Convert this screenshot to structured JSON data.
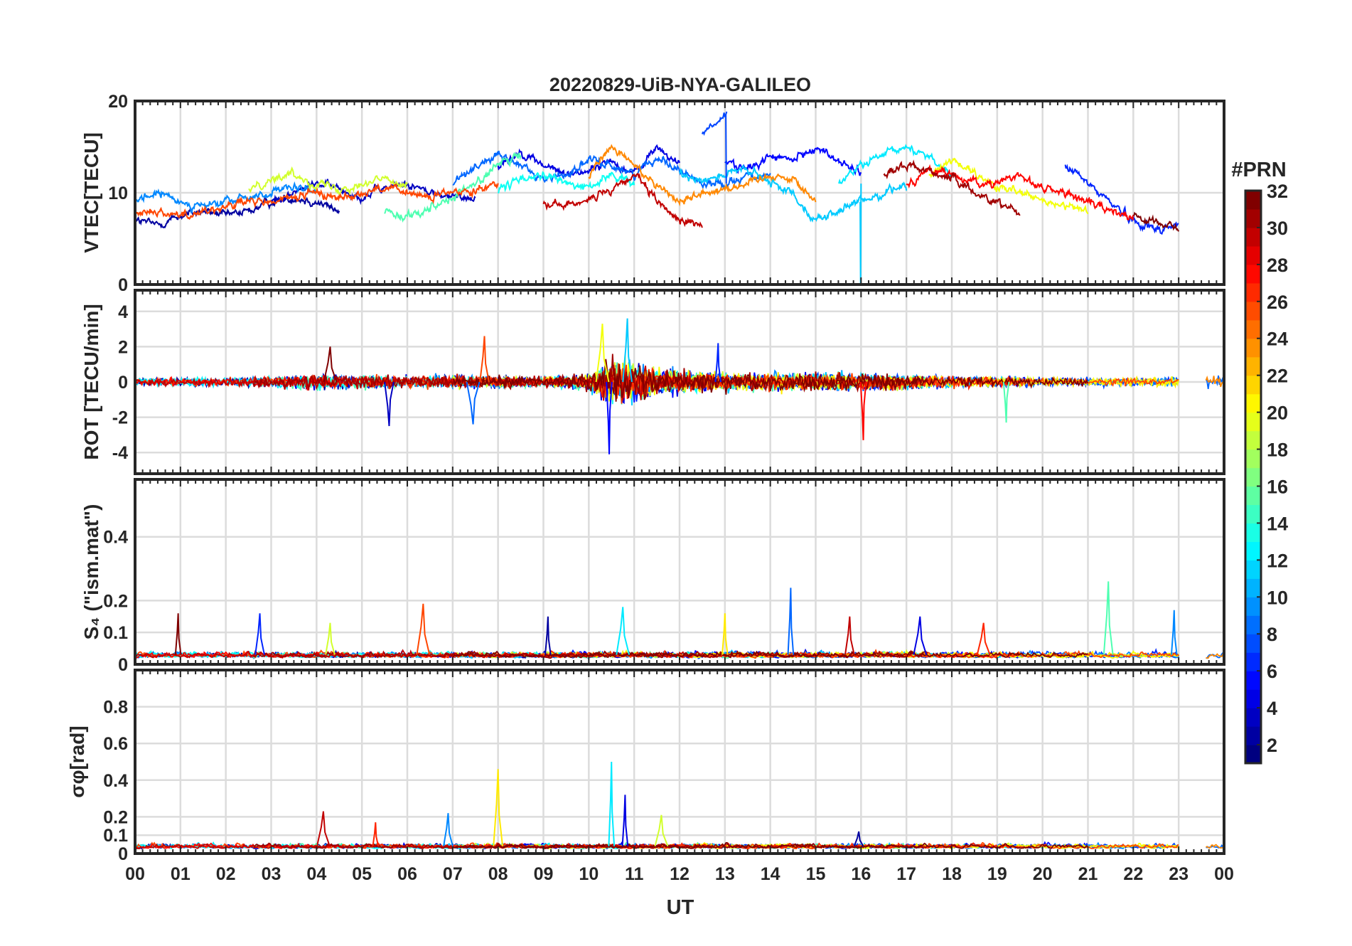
{
  "chart_data": {
    "title": "20220829-UiB-NYA-GALILEO",
    "xlabel": "UT",
    "x_ticks": [
      "00",
      "01",
      "02",
      "03",
      "04",
      "05",
      "06",
      "07",
      "08",
      "09",
      "10",
      "11",
      "12",
      "13",
      "14",
      "15",
      "16",
      "17",
      "18",
      "19",
      "20",
      "21",
      "22",
      "23",
      "00"
    ],
    "xlim": [
      0,
      24
    ],
    "grid": true,
    "colorbar": {
      "label": "#PRN",
      "range": [
        1,
        32
      ],
      "ticks": [
        "2",
        "4",
        "6",
        "8",
        "10",
        "12",
        "14",
        "16",
        "18",
        "20",
        "22",
        "24",
        "26",
        "28",
        "30",
        "32"
      ],
      "colormap": "jet"
    },
    "panels": [
      {
        "type": "line",
        "ylabel": "VTEC[TECU]",
        "ylim": [
          0,
          20
        ],
        "yticks": [
          "0",
          "10",
          "20"
        ],
        "series": [
          {
            "prn": 2,
            "x": [
              0,
              0.5,
              1,
              1.5,
              2,
              2.5,
              3,
              3.5,
              4,
              4.5
            ],
            "y": [
              7,
              6.5,
              7.5,
              8,
              7.5,
              8,
              9,
              9.5,
              9,
              8
            ]
          },
          {
            "prn": 3,
            "x": [
              3,
              3.5,
              4,
              4.5,
              5,
              5.5,
              6,
              6.5,
              7,
              7.5
            ],
            "y": [
              9,
              10,
              11,
              10.5,
              9.5,
              10.5,
              11,
              10,
              9.5,
              9.5
            ]
          },
          {
            "prn": 4,
            "x": [
              8,
              8.5,
              9,
              9.5,
              10,
              10.5,
              11,
              11.5,
              12
            ],
            "y": [
              13,
              14.5,
              13,
              12,
              12.5,
              13.5,
              12,
              15,
              13
            ]
          },
          {
            "prn": 5,
            "x": [
              13,
              13.5,
              14,
              14.5,
              15,
              15.5,
              16
            ],
            "y": [
              13.5,
              12.5,
              14,
              13.5,
              15,
              13.5,
              12
            ]
          },
          {
            "prn": 6,
            "x": [
              20.5,
              21,
              21.5,
              22,
              22.5,
              23
            ],
            "y": [
              13,
              11,
              9,
              7,
              6,
              6.5
            ]
          },
          {
            "prn": 7,
            "x": [
              12.5,
              12.8,
              13.05
            ],
            "y": [
              16.5,
              17.5,
              18.5
            ]
          },
          {
            "prn": 8,
            "x": [
              7,
              7.5,
              8,
              8.5,
              9,
              9.5,
              10,
              10.5,
              11,
              11.5,
              12,
              12.5,
              13,
              13.5,
              14
            ],
            "y": [
              11,
              13,
              14,
              13,
              11.5,
              12,
              13.5,
              13,
              12,
              14,
              12.5,
              11,
              11,
              12,
              11.5
            ]
          },
          {
            "prn": 9,
            "x": [
              0,
              0.5,
              1,
              1.5,
              2,
              2.5,
              3,
              3.5,
              4
            ],
            "y": [
              9,
              10,
              9,
              8.5,
              9,
              9.5,
              10,
              10.5,
              10
            ]
          },
          {
            "prn": 11,
            "x": [
              12,
              12.5,
              13,
              13.5,
              14,
              14.5,
              15,
              15.5,
              16,
              16.5,
              17
            ],
            "y": [
              12,
              11.5,
              12,
              12.5,
              11,
              10,
              7,
              8,
              9,
              10,
              11
            ]
          },
          {
            "prn": 12,
            "x": [
              15.5,
              16,
              16.5,
              17,
              17.5,
              18
            ],
            "y": [
              11,
              13,
              14,
              15,
              14,
              12
            ]
          },
          {
            "prn": 13,
            "x": [
              8,
              8.5,
              9,
              9.5,
              10,
              10.5,
              11
            ],
            "y": [
              10,
              11.5,
              12,
              11,
              10.5,
              12,
              11
            ]
          },
          {
            "prn": 15,
            "x": [
              5.5,
              6,
              6.5,
              7,
              7.5,
              8,
              8.5
            ],
            "y": [
              8,
              7.5,
              8.5,
              9.5,
              11,
              13,
              14
            ]
          },
          {
            "prn": 19,
            "x": [
              2.5,
              3,
              3.5,
              4,
              4.5,
              5,
              5.5,
              6
            ],
            "y": [
              10.5,
              11.5,
              12,
              11,
              10.5,
              11,
              11.5,
              11
            ]
          },
          {
            "prn": 20,
            "x": [
              17.5,
              18,
              18.5,
              19,
              19.5,
              20,
              20.5,
              21
            ],
            "y": [
              12,
              13.5,
              12,
              10.5,
              10,
              9,
              8.5,
              8
            ]
          },
          {
            "prn": 24,
            "x": [
              10,
              10.5,
              11,
              11.5,
              12,
              12.5,
              13,
              13.5,
              14,
              14.5,
              15
            ],
            "y": [
              12,
              15,
              13,
              11,
              9,
              10,
              10.5,
              11,
              12,
              11.5,
              9
            ]
          },
          {
            "prn": 26,
            "x": [
              0,
              0.5,
              1,
              1.5,
              2,
              2.5,
              3,
              3.5,
              4,
              4.5,
              5,
              5.5,
              6,
              6.5,
              7,
              7.5,
              8
            ],
            "y": [
              8,
              8,
              7.5,
              8,
              8.5,
              9,
              9,
              9.5,
              10,
              9.5,
              10,
              10.5,
              10,
              9.5,
              10,
              10.5,
              11
            ]
          },
          {
            "prn": 28,
            "x": [
              17,
              17.5,
              18,
              18.5,
              19,
              19.5,
              20,
              20.5,
              21,
              21.5,
              22
            ],
            "y": [
              11,
              12.5,
              12,
              11,
              11,
              12,
              10.5,
              10,
              9,
              8,
              7.5
            ]
          },
          {
            "prn": 30,
            "x": [
              9,
              9.5,
              10,
              10.5,
              11,
              11.5,
              12,
              12.5
            ],
            "y": [
              9,
              8.5,
              9.5,
              10,
              12,
              9,
              7,
              6.5
            ]
          },
          {
            "prn": 31,
            "x": [
              16.5,
              17,
              17.5,
              18,
              18.5,
              19,
              19.5
            ],
            "y": [
              12,
              13,
              12.5,
              11.5,
              10,
              9,
              8
            ]
          },
          {
            "prn": 32,
            "x": [
              22,
              22.5,
              23
            ],
            "y": [
              7.5,
              6.8,
              6.2
            ]
          }
        ]
      },
      {
        "type": "line",
        "ylabel": "ROT [TECU/min]",
        "ylim": [
          -5.2,
          5.2
        ],
        "yticks": [
          "-4",
          "-2",
          "0",
          "2",
          "4"
        ],
        "noise_envelope": {
          "x": [
            0,
            1,
            2,
            3,
            4,
            5,
            6,
            7,
            8,
            9,
            10,
            10.5,
            11,
            11.5,
            12,
            13,
            14,
            15,
            16,
            17,
            18,
            19,
            20,
            21,
            22,
            23,
            24
          ],
          "std": [
            0.15,
            0.2,
            0.2,
            0.25,
            0.4,
            0.35,
            0.3,
            0.35,
            0.3,
            0.25,
            0.4,
            1.2,
            1.1,
            0.7,
            0.6,
            0.45,
            0.45,
            0.45,
            0.45,
            0.35,
            0.3,
            0.25,
            0.2,
            0.2,
            0.2,
            0.25,
            0.3
          ]
        },
        "peaks": [
          {
            "x": 10.45,
            "y": -4.1
          },
          {
            "x": 10.85,
            "y": 3.6
          },
          {
            "x": 10.3,
            "y": 3.3
          },
          {
            "x": 16.05,
            "y": -3.3
          },
          {
            "x": 5.6,
            "y": -2.5
          },
          {
            "x": 7.45,
            "y": -2.4
          },
          {
            "x": 19.2,
            "y": -2.3
          },
          {
            "x": 7.7,
            "y": 2.6
          },
          {
            "x": 4.3,
            "y": 2.0
          },
          {
            "x": 12.85,
            "y": 2.2
          }
        ]
      },
      {
        "type": "line",
        "ylabel": "S₄ (\"ism.mat\")",
        "ylim": [
          0,
          0.58
        ],
        "yticks": [
          "0",
          "0.1",
          "0.2",
          "0.4"
        ],
        "baseline": 0.03,
        "peaks": [
          {
            "x": 14.45,
            "y": 0.24
          },
          {
            "x": 21.45,
            "y": 0.26
          },
          {
            "x": 6.35,
            "y": 0.19
          },
          {
            "x": 0.95,
            "y": 0.16
          },
          {
            "x": 2.75,
            "y": 0.16
          },
          {
            "x": 10.75,
            "y": 0.18
          },
          {
            "x": 13.0,
            "y": 0.16
          },
          {
            "x": 15.75,
            "y": 0.15
          },
          {
            "x": 17.3,
            "y": 0.15
          },
          {
            "x": 22.9,
            "y": 0.17
          },
          {
            "x": 4.3,
            "y": 0.13
          },
          {
            "x": 18.7,
            "y": 0.13
          },
          {
            "x": 9.1,
            "y": 0.15
          }
        ]
      },
      {
        "type": "line",
        "ylabel": "σφ[rad]",
        "ylim": [
          0,
          1.0
        ],
        "yticks": [
          "0",
          "0.1",
          "0.2",
          "0.4",
          "0.6",
          "0.8"
        ],
        "baseline": 0.04,
        "peaks": [
          {
            "x": 10.5,
            "y": 0.5
          },
          {
            "x": 8.0,
            "y": 0.46
          },
          {
            "x": 4.15,
            "y": 0.23
          },
          {
            "x": 10.8,
            "y": 0.32
          },
          {
            "x": 6.9,
            "y": 0.22
          },
          {
            "x": 11.6,
            "y": 0.21
          },
          {
            "x": 5.3,
            "y": 0.17
          },
          {
            "x": 15.95,
            "y": 0.12
          }
        ]
      }
    ]
  }
}
